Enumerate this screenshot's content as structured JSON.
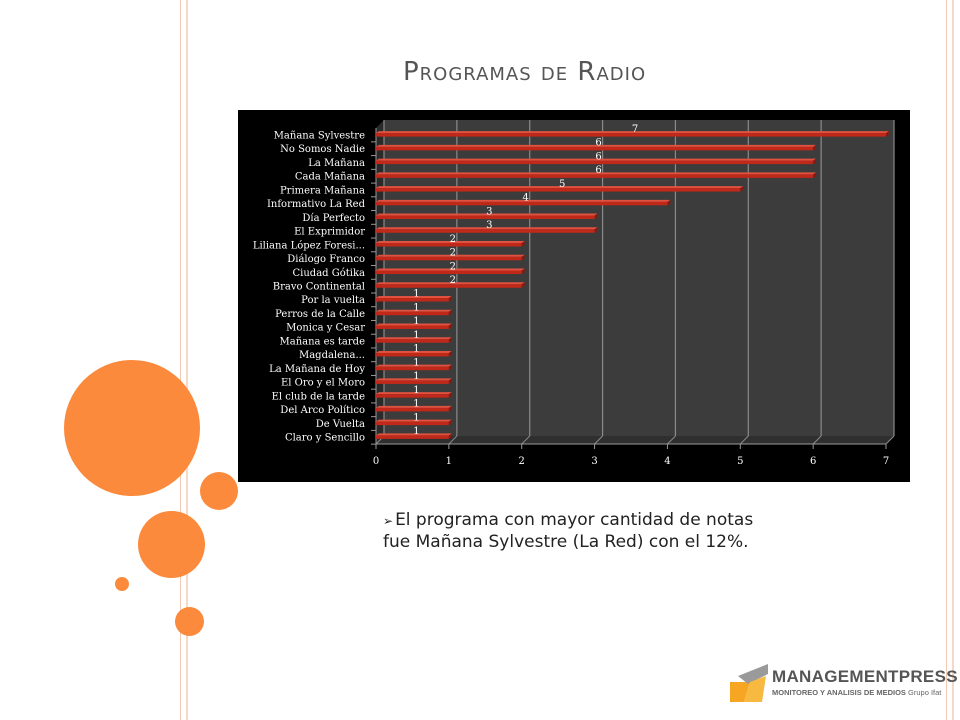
{
  "slide": {
    "title": "Programas de Radio",
    "bullet_text": "El programa con mayor cantidad de notas fue Mañana Sylvestre (La Red) con el 12%."
  },
  "logo": {
    "name": "MANAGEMENTPRESS",
    "subtitle": "MONITOREO Y ANALISIS DE MEDIOS",
    "group": "Grupo Ifat"
  },
  "colors": {
    "accent_circles": "#fb8a3c",
    "bar": "#c0281a",
    "chart_background": "#000000",
    "plot_background": "#3c3c3c"
  },
  "chart_data": {
    "type": "bar",
    "orientation": "horizontal",
    "style": "3d",
    "categories": [
      "Mañana Sylvestre",
      "No Somos Nadie",
      "La Mañana",
      "Cada Mañana",
      "Primera Mañana",
      "Informativo La Red",
      "Día Perfecto",
      "El Exprimidor",
      "Liliana López Foresi...",
      "Diálogo Franco",
      "Ciudad Gótika",
      "Bravo Continental",
      "Por la vuelta",
      "Perros de la Calle",
      "Monica y Cesar",
      "Mañana es tarde",
      "Magdalena...",
      "La Mañana de Hoy",
      "El Oro y el Moro",
      "El club de la tarde",
      "Del Arco Político",
      "De Vuelta",
      "Claro y Sencillo"
    ],
    "values": [
      7,
      6,
      6,
      6,
      5,
      4,
      3,
      3,
      2,
      2,
      2,
      2,
      1,
      1,
      1,
      1,
      1,
      1,
      1,
      1,
      1,
      1,
      1
    ],
    "xlim": [
      0,
      7
    ],
    "xticks": [
      "0",
      "1",
      "2",
      "3",
      "4",
      "5",
      "6",
      "7"
    ],
    "data_labels": true,
    "grid": true,
    "legend": "none"
  }
}
